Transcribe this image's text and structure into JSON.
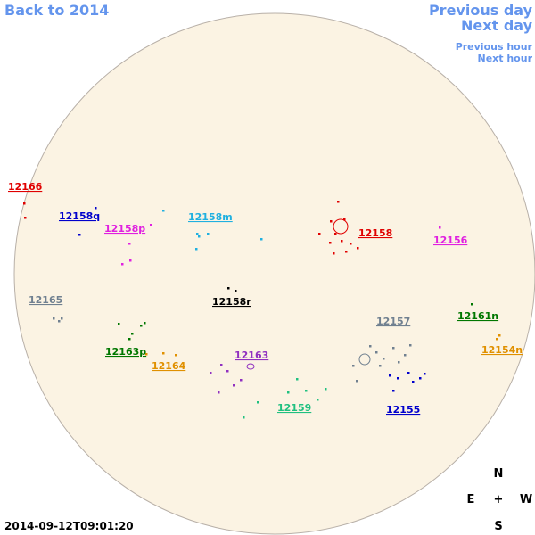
{
  "nav": {
    "back": "Back to 2014",
    "previous_day": "Previous day",
    "next_day": "Next day",
    "previous_hour": "Previous hour",
    "next_hour": "Next hour"
  },
  "regions": [
    {
      "label": "12166",
      "color": "#e00000"
    },
    {
      "label": "12158q",
      "color": "#0000cc"
    },
    {
      "label": "12158p",
      "color": "#e020e0"
    },
    {
      "label": "12158m",
      "color": "#20b0e0"
    },
    {
      "label": "12158",
      "color": "#e00000"
    },
    {
      "label": "12156",
      "color": "#e020e0"
    },
    {
      "label": "12165",
      "color": "#708090"
    },
    {
      "label": "12158r",
      "color": "#000000"
    },
    {
      "label": "12157",
      "color": "#708090"
    },
    {
      "label": "12161n",
      "color": "#007700"
    },
    {
      "label": "12163p",
      "color": "#007700"
    },
    {
      "label": "12154n",
      "color": "#e09000"
    },
    {
      "label": "12164",
      "color": "#e09000"
    },
    {
      "label": "12163",
      "color": "#9030c0"
    },
    {
      "label": "12159",
      "color": "#20c080"
    },
    {
      "label": "12155",
      "color": "#0000cc"
    }
  ],
  "compass": {
    "north": "N",
    "east": "E",
    "center": "+",
    "west": "W",
    "south": "S"
  },
  "timestamp": "2014-09-12T09:01:20"
}
